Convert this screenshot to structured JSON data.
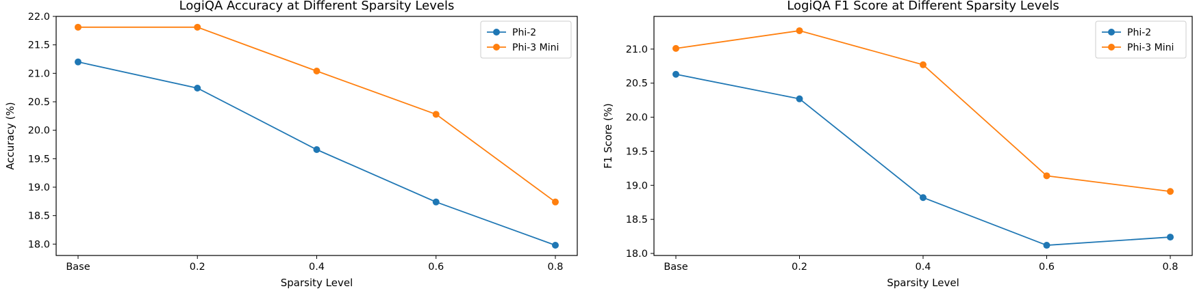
{
  "chart_data": [
    {
      "type": "line",
      "title": "LogiQA Accuracy at Different Sparsity Levels",
      "xlabel": "Sparsity Level",
      "ylabel": "Accuracy (%)",
      "categories": [
        "Base",
        "0.2",
        "0.4",
        "0.6",
        "0.8"
      ],
      "ylim": [
        17.8,
        22.0
      ],
      "yticks": [
        18.0,
        18.5,
        19.0,
        19.5,
        20.0,
        20.5,
        21.0,
        21.5,
        22.0
      ],
      "grid": false,
      "legend_position": "top-right",
      "series": [
        {
          "name": "Phi-2",
          "color": "#1f77b4",
          "values": [
            21.2,
            20.74,
            19.66,
            18.74,
            17.98
          ]
        },
        {
          "name": "Phi-3 Mini",
          "color": "#ff7f0e",
          "values": [
            21.81,
            21.81,
            21.04,
            20.28,
            18.74
          ]
        }
      ]
    },
    {
      "type": "line",
      "title": "LogiQA F1 Score at Different Sparsity Levels",
      "xlabel": "Sparsity Level",
      "ylabel": "F1 Score (%)",
      "categories": [
        "Base",
        "0.2",
        "0.4",
        "0.6",
        "0.8"
      ],
      "ylim": [
        17.97,
        21.48
      ],
      "yticks": [
        18.0,
        18.5,
        19.0,
        19.5,
        20.0,
        20.5,
        21.0
      ],
      "grid": false,
      "legend_position": "top-right",
      "series": [
        {
          "name": "Phi-2",
          "color": "#1f77b4",
          "values": [
            20.63,
            20.27,
            18.82,
            18.12,
            18.24
          ]
        },
        {
          "name": "Phi-3 Mini",
          "color": "#ff7f0e",
          "values": [
            21.01,
            21.27,
            20.77,
            19.14,
            18.91
          ]
        }
      ]
    }
  ]
}
